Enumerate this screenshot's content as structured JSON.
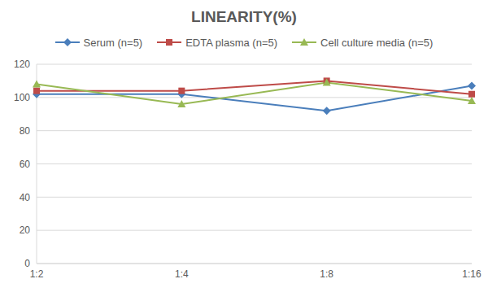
{
  "chart_data": {
    "type": "line",
    "title": "LINEARITY(%)",
    "categories": [
      "1:2",
      "1:4",
      "1:8",
      "1:16"
    ],
    "series": [
      {
        "name": "Serum (n=5)",
        "color": "#4a7ebb",
        "marker": "diamond",
        "values": [
          102,
          102,
          92,
          107
        ]
      },
      {
        "name": "EDTA plasma (n=5)",
        "color": "#be4b48",
        "marker": "square",
        "values": [
          104,
          104,
          110,
          102
        ]
      },
      {
        "name": "Cell culture media (n=5)",
        "color": "#98b954",
        "marker": "triangle",
        "values": [
          108,
          96,
          109,
          98
        ]
      }
    ],
    "ylim": [
      0,
      120
    ],
    "yticks": [
      0,
      20,
      40,
      60,
      80,
      100,
      120
    ],
    "grid": true,
    "legend": "top"
  }
}
